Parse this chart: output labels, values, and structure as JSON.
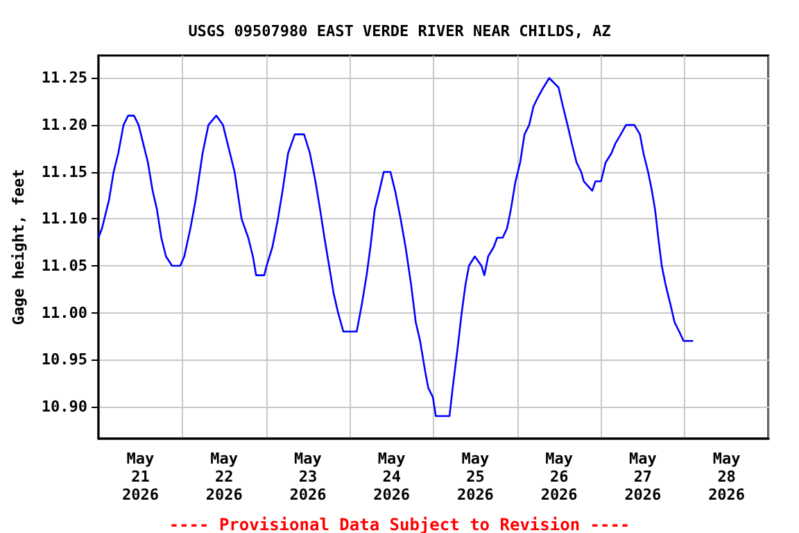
{
  "chart_data": {
    "type": "line",
    "title": "USGS 09507980 EAST VERDE RIVER NEAR CHILDS, AZ",
    "ylabel": "Gage height, feet",
    "annotations": [
      "---- Provisional Data Subject to Revision ----"
    ],
    "xlim": [
      "2026-05-21T00:00",
      "2026-05-29T00:00"
    ],
    "xticks": [
      {
        "value": "2026-05-21T00:00",
        "label": null
      },
      {
        "value": "2026-05-21T12:00",
        "label": "May\n21\n2026"
      },
      {
        "value": "2026-05-22T00:00",
        "label": null
      },
      {
        "value": "2026-05-22T12:00",
        "label": "May\n22\n2026"
      },
      {
        "value": "2026-05-23T00:00",
        "label": null
      },
      {
        "value": "2026-05-23T12:00",
        "label": "May\n23\n2026"
      },
      {
        "value": "2026-05-24T00:00",
        "label": null
      },
      {
        "value": "2026-05-24T12:00",
        "label": "May\n24\n2026"
      },
      {
        "value": "2026-05-25T00:00",
        "label": null
      },
      {
        "value": "2026-05-25T12:00",
        "label": "May\n25\n2026"
      },
      {
        "value": "2026-05-26T00:00",
        "label": null
      },
      {
        "value": "2026-05-26T12:00",
        "label": "May\n26\n2026"
      },
      {
        "value": "2026-05-27T00:00",
        "label": null
      },
      {
        "value": "2026-05-27T12:00",
        "label": "May\n27\n2026"
      },
      {
        "value": "2026-05-28T00:00",
        "label": null
      },
      {
        "value": "2026-05-28T12:00",
        "label": "May\n28\n2026"
      },
      {
        "value": "2026-05-29T00:00",
        "label": null
      }
    ],
    "ylim": [
      10.866,
      11.274
    ],
    "yticks": [
      {
        "value": 10.9,
        "label": "10.90"
      },
      {
        "value": 10.95,
        "label": "10.95"
      },
      {
        "value": 11.0,
        "label": "11.00"
      },
      {
        "value": 11.05,
        "label": "11.05"
      },
      {
        "value": 11.1,
        "label": "11.10"
      },
      {
        "value": 11.15,
        "label": "11.15"
      },
      {
        "value": 11.2,
        "label": "11.20"
      },
      {
        "value": 11.25,
        "label": "11.25"
      }
    ],
    "grid": true,
    "marker": "none",
    "line_style": "solid",
    "series": [
      {
        "color": "#0000ff",
        "x": [
          "2026-05-21T00:00",
          "2026-05-21T01:00",
          "2026-05-21T03:00",
          "2026-05-21T04:20",
          "2026-05-21T05:40",
          "2026-05-21T07:10",
          "2026-05-21T08:30",
          "2026-05-21T10:10",
          "2026-05-21T11:30",
          "2026-05-21T12:50",
          "2026-05-21T14:10",
          "2026-05-21T15:30",
          "2026-05-21T16:45",
          "2026-05-21T18:00",
          "2026-05-21T19:20",
          "2026-05-21T21:05",
          "2026-05-21T23:25",
          "2026-05-22T00:35",
          "2026-05-22T02:20",
          "2026-05-22T03:50",
          "2026-05-22T05:50",
          "2026-05-22T07:30",
          "2026-05-22T09:45",
          "2026-05-22T11:40",
          "2026-05-22T13:00",
          "2026-05-22T15:00",
          "2026-05-22T17:00",
          "2026-05-22T18:55",
          "2026-05-22T20:15",
          "2026-05-22T21:10",
          "2026-05-22T23:30",
          "2026-05-23T00:10",
          "2026-05-23T01:50",
          "2026-05-23T03:25",
          "2026-05-23T04:45",
          "2026-05-23T06:20",
          "2026-05-23T08:15",
          "2026-05-23T10:55",
          "2026-05-23T12:35",
          "2026-05-23T14:10",
          "2026-05-23T15:30",
          "2026-05-23T16:45",
          "2026-05-23T18:05",
          "2026-05-23T19:25",
          "2026-05-23T20:40",
          "2026-05-23T22:10",
          "2026-05-24T02:00",
          "2026-05-24T03:30",
          "2026-05-24T04:50",
          "2026-05-24T05:55",
          "2026-05-24T07:10",
          "2026-05-24T08:30",
          "2026-05-24T09:45",
          "2026-05-24T11:40",
          "2026-05-24T13:00",
          "2026-05-24T14:35",
          "2026-05-24T16:00",
          "2026-05-24T17:35",
          "2026-05-24T18:55",
          "2026-05-24T20:10",
          "2026-05-24T21:30",
          "2026-05-24T22:30",
          "2026-05-24T23:50",
          "2026-05-25T00:40",
          "2026-05-25T04:35",
          "2026-05-25T05:30",
          "2026-05-25T06:50",
          "2026-05-25T08:05",
          "2026-05-25T09:10",
          "2026-05-25T10:10",
          "2026-05-25T11:50",
          "2026-05-25T13:45",
          "2026-05-25T14:35",
          "2026-05-25T15:40",
          "2026-05-25T17:15",
          "2026-05-25T18:15",
          "2026-05-25T19:50",
          "2026-05-25T21:05",
          "2026-05-25T22:10",
          "2026-05-25T23:30",
          "2026-05-26T00:50",
          "2026-05-26T02:05",
          "2026-05-26T03:25",
          "2026-05-26T04:40",
          "2026-05-26T06:00",
          "2026-05-26T07:30",
          "2026-05-26T09:10",
          "2026-05-26T11:50",
          "2026-05-26T13:05",
          "2026-05-26T14:25",
          "2026-05-26T15:40",
          "2026-05-26T17:00",
          "2026-05-26T18:20",
          "2026-05-26T19:05",
          "2026-05-26T21:30",
          "2026-05-26T22:25",
          "2026-05-27T00:00",
          "2026-05-27T01:20",
          "2026-05-27T03:00",
          "2026-05-27T04:05",
          "2026-05-27T05:40",
          "2026-05-27T07:10",
          "2026-05-27T09:35",
          "2026-05-27T11:10",
          "2026-05-27T12:10",
          "2026-05-27T13:30",
          "2026-05-27T14:35",
          "2026-05-27T15:30",
          "2026-05-27T16:25",
          "2026-05-27T17:25",
          "2026-05-27T18:30",
          "2026-05-27T19:50",
          "2026-05-27T21:05",
          "2026-05-27T22:25",
          "2026-05-27T23:40",
          "2026-05-28T02:25"
        ],
        "values": [
          11.08,
          11.09,
          11.12,
          11.15,
          11.17,
          11.2,
          11.21,
          11.21,
          11.2,
          11.18,
          11.16,
          11.13,
          11.11,
          11.08,
          11.06,
          11.05,
          11.05,
          11.06,
          11.09,
          11.12,
          11.17,
          11.2,
          11.21,
          11.2,
          11.18,
          11.15,
          11.1,
          11.08,
          11.06,
          11.04,
          11.04,
          11.05,
          11.07,
          11.1,
          11.13,
          11.17,
          11.19,
          11.19,
          11.17,
          11.14,
          11.11,
          11.08,
          11.05,
          11.02,
          11.0,
          10.98,
          10.98,
          11.01,
          11.04,
          11.07,
          11.11,
          11.13,
          11.15,
          11.15,
          11.13,
          11.1,
          11.07,
          11.03,
          10.99,
          10.97,
          10.94,
          10.92,
          10.91,
          10.89,
          10.89,
          10.92,
          10.96,
          11.0,
          11.03,
          11.05,
          11.06,
          11.05,
          11.04,
          11.06,
          11.07,
          11.08,
          11.08,
          11.09,
          11.11,
          11.14,
          11.16,
          11.19,
          11.2,
          11.22,
          11.23,
          11.24,
          11.25,
          11.24,
          11.22,
          11.2,
          11.18,
          11.16,
          11.15,
          11.14,
          11.13,
          11.14,
          11.14,
          11.16,
          11.17,
          11.18,
          11.19,
          11.2,
          11.2,
          11.19,
          11.17,
          11.15,
          11.13,
          11.11,
          11.08,
          11.05,
          11.03,
          11.01,
          10.99,
          10.98,
          10.97,
          10.97
        ]
      }
    ]
  }
}
